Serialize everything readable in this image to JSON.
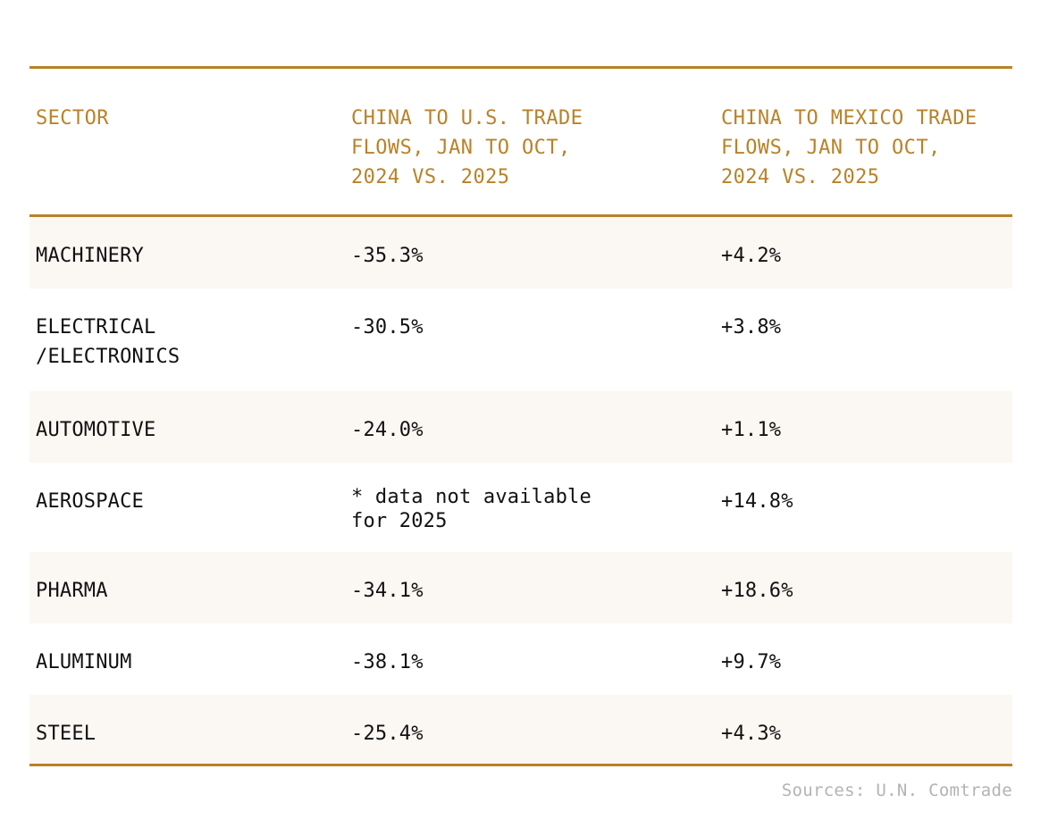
{
  "chart_data": {
    "type": "table",
    "columns": [
      "SECTOR",
      "CHINA TO U.S. TRADE\nFLOWS, JAN TO OCT,\n2024 VS. 2025",
      "CHINA TO MEXICO TRADE\nFLOWS, JAN TO OCT,\n2024 VS. 2025"
    ],
    "rows": [
      {
        "sector": "MACHINERY",
        "us": "-35.3%",
        "mexico": "+4.2%"
      },
      {
        "sector": "ELECTRICAL\n/ELECTRONICS",
        "us": "-30.5%",
        "mexico": "+3.8%"
      },
      {
        "sector": "AUTOMOTIVE",
        "us": "-24.0%",
        "mexico": "+1.1%"
      },
      {
        "sector": "AEROSPACE",
        "us": "* data not available\nfor 2025",
        "mexico": "+14.8%"
      },
      {
        "sector": "PHARMA",
        "us": "-34.1%",
        "mexico": "+18.6%"
      },
      {
        "sector": "ALUMINUM",
        "us": "-38.1%",
        "mexico": "+9.7%"
      },
      {
        "sector": "STEEL",
        "us": "-25.4%",
        "mexico": "+4.3%"
      }
    ],
    "source": "Sources: U.N. Comtrade",
    "colors": {
      "accent": "#b98228",
      "row_shade": "#fbf7f3",
      "text": "#111111",
      "source_text": "#b3b3b3"
    }
  }
}
